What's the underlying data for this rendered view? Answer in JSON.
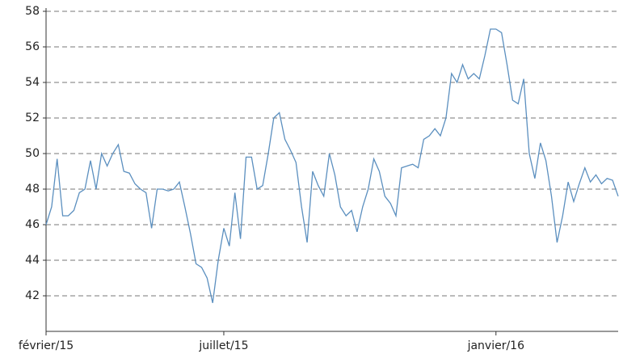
{
  "chart_data": {
    "type": "line",
    "categories": [
      "février/15",
      null,
      null,
      null,
      null,
      null,
      null,
      null,
      null,
      null,
      null,
      null,
      null,
      null,
      null,
      null,
      null,
      null,
      null,
      null,
      null,
      null,
      null,
      null,
      null,
      null,
      null,
      null,
      null,
      null,
      null,
      null,
      "juillet/15",
      null,
      null,
      null,
      null,
      null,
      null,
      null,
      null,
      null,
      null,
      null,
      null,
      null,
      null,
      null,
      null,
      null,
      null,
      null,
      null,
      null,
      null,
      null,
      null,
      null,
      null,
      null,
      null,
      null,
      null,
      null,
      null,
      null,
      null,
      null,
      null,
      null,
      null,
      null,
      null,
      null,
      null,
      null,
      null,
      null,
      null,
      null,
      null,
      "janvier/16",
      null,
      null,
      null,
      null,
      null,
      null,
      null,
      null,
      null,
      null,
      null,
      null,
      null,
      null,
      null,
      null,
      null,
      null,
      null,
      null,
      null,
      null
    ],
    "values": [
      46,
      47,
      49.7,
      46.5,
      46.5,
      46.8,
      47.8,
      48,
      49.6,
      48,
      50,
      49.3,
      50,
      50.5,
      49,
      48.9,
      48.3,
      48,
      47.8,
      45.8,
      48,
      48,
      47.9,
      48,
      48.4,
      47,
      45.5,
      43.8,
      43.6,
      43,
      41.6,
      44,
      45.8,
      44.8,
      47.8,
      45.2,
      49.8,
      49.8,
      48,
      48.2,
      50,
      52,
      52.3,
      50.8,
      50.2,
      49.5,
      47,
      45,
      49,
      48.2,
      47.6,
      50,
      48.8,
      47,
      46.5,
      46.8,
      45.6,
      47,
      48,
      49.7,
      49,
      47.6,
      47.2,
      46.5,
      49.2,
      49.3,
      49.4,
      49.2,
      50.8,
      51,
      51.4,
      51,
      52,
      54.5,
      54,
      55,
      54.2,
      54.5,
      54.2,
      55.5,
      57,
      57,
      56.8,
      55,
      53,
      52.8,
      54.2,
      50,
      48.6,
      50.6,
      49.6,
      47.6,
      45,
      46.5,
      48.4,
      47.3,
      48.3,
      49.2,
      48.4,
      48.8,
      48.3,
      48.6,
      48.5,
      47.6
    ],
    "color": "#5b8fbf",
    "ylim": [
      40,
      58
    ],
    "yticks": [
      42,
      44,
      46,
      48,
      50,
      52,
      54,
      56,
      58
    ],
    "grid": true
  }
}
